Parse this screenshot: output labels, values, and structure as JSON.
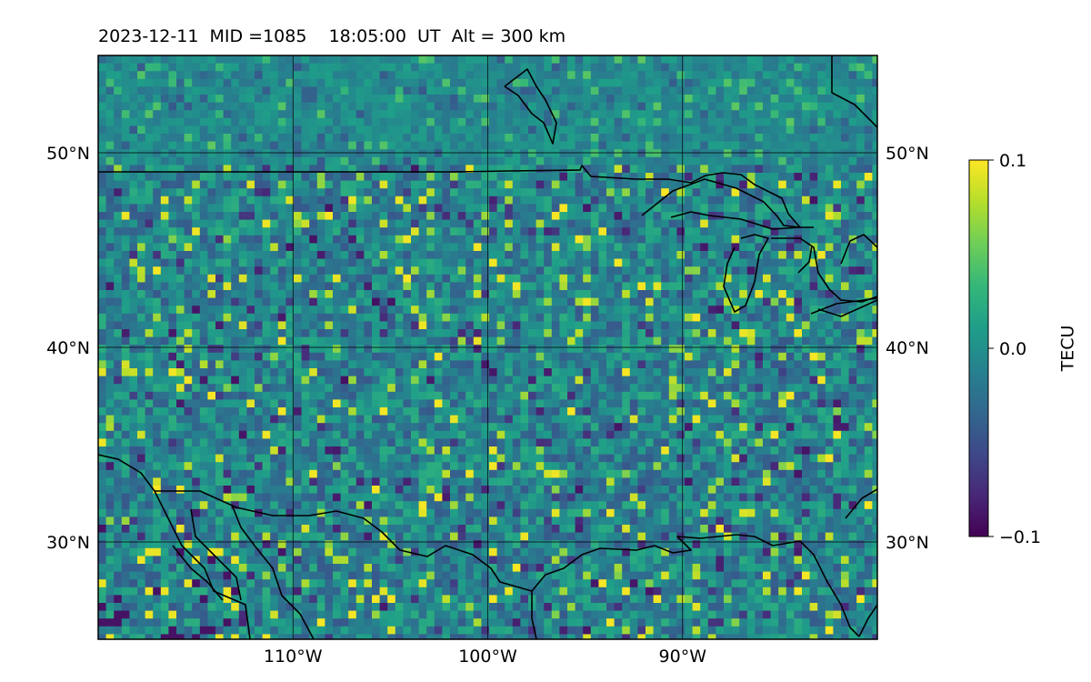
{
  "title": "2023-12-11  MID =1085    18:05:00  UT  Alt = 300 km",
  "map": {
    "projection": "plate-carree",
    "lon_range": [
      -120,
      -80
    ],
    "lat_range": [
      25,
      55
    ],
    "lon_ticks": [
      {
        "value": -110,
        "label": "110°W"
      },
      {
        "value": -100,
        "label": "100°W"
      },
      {
        "value": -90,
        "label": "90°W"
      }
    ],
    "lat_ticks": [
      {
        "value": 30,
        "label": "30°N"
      },
      {
        "value": 40,
        "label": "40°N"
      },
      {
        "value": 50,
        "label": "50°N"
      }
    ],
    "gridlines": true,
    "coastlines": true,
    "colormap": "viridis",
    "colormap_stops": [
      "#440154",
      "#482878",
      "#3e4989",
      "#31688e",
      "#26828e",
      "#1f9e89",
      "#35b779",
      "#6ece58",
      "#b5de2b",
      "#fde725"
    ]
  },
  "colorbar": {
    "label": "TECU",
    "min": -0.1,
    "max": 0.1,
    "ticks": [
      {
        "value": 0.1,
        "label": "0.1"
      },
      {
        "value": 0.0,
        "label": "0.0"
      },
      {
        "value": -0.1,
        "label": "−0.1"
      }
    ]
  }
}
